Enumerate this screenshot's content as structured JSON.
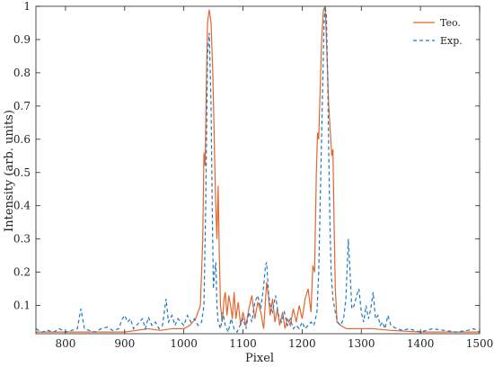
{
  "chart_data": {
    "type": "line",
    "title": "",
    "xlabel": "Pixel",
    "ylabel": "Intensity (arb. units)",
    "xlim": [
      750,
      1500
    ],
    "ylim": [
      0.015,
      1.0
    ],
    "xticks": [
      800,
      900,
      1000,
      1100,
      1200,
      1300,
      1400,
      1500
    ],
    "yticks": [
      0.1,
      0.2,
      0.3,
      0.4,
      0.5,
      0.6,
      0.7,
      0.8,
      0.9,
      1
    ],
    "ytick_labels": [
      "0.1",
      "0.2",
      "0.3",
      "0.4",
      "0.5",
      "0.6",
      "0.7",
      "0.8",
      "0.9",
      "1"
    ],
    "legend_position": "top-right",
    "grid": false,
    "series": [
      {
        "name": "Teo.",
        "style": "solid",
        "color": "#E3662E",
        "points": [
          [
            750,
            0.02
          ],
          [
            800,
            0.02
          ],
          [
            850,
            0.02
          ],
          [
            900,
            0.02
          ],
          [
            940,
            0.03
          ],
          [
            960,
            0.025
          ],
          [
            980,
            0.03
          ],
          [
            1000,
            0.03
          ],
          [
            1010,
            0.04
          ],
          [
            1020,
            0.06
          ],
          [
            1028,
            0.1
          ],
          [
            1032,
            0.3
          ],
          [
            1034,
            0.56
          ],
          [
            1036,
            0.52
          ],
          [
            1038,
            0.75
          ],
          [
            1040,
            0.95
          ],
          [
            1043,
            0.99
          ],
          [
            1046,
            0.95
          ],
          [
            1049,
            0.8
          ],
          [
            1052,
            0.55
          ],
          [
            1054,
            0.4
          ],
          [
            1056,
            0.3
          ],
          [
            1058,
            0.46
          ],
          [
            1060,
            0.25
          ],
          [
            1062,
            0.1
          ],
          [
            1065,
            0.05
          ],
          [
            1068,
            0.12
          ],
          [
            1070,
            0.14
          ],
          [
            1073,
            0.07
          ],
          [
            1076,
            0.13
          ],
          [
            1079,
            0.1
          ],
          [
            1082,
            0.06
          ],
          [
            1085,
            0.14
          ],
          [
            1088,
            0.06
          ],
          [
            1092,
            0.11
          ],
          [
            1096,
            0.04
          ],
          [
            1100,
            0.08
          ],
          [
            1105,
            0.04
          ],
          [
            1110,
            0.09
          ],
          [
            1115,
            0.13
          ],
          [
            1120,
            0.06
          ],
          [
            1125,
            0.11
          ],
          [
            1130,
            0.08
          ],
          [
            1135,
            0.03
          ],
          [
            1140,
            0.17
          ],
          [
            1143,
            0.13
          ],
          [
            1146,
            0.07
          ],
          [
            1150,
            0.12
          ],
          [
            1154,
            0.05
          ],
          [
            1158,
            0.09
          ],
          [
            1162,
            0.04
          ],
          [
            1167,
            0.08
          ],
          [
            1171,
            0.03
          ],
          [
            1175,
            0.06
          ],
          [
            1180,
            0.04
          ],
          [
            1185,
            0.09
          ],
          [
            1190,
            0.05
          ],
          [
            1195,
            0.1
          ],
          [
            1200,
            0.06
          ],
          [
            1205,
            0.12
          ],
          [
            1210,
            0.15
          ],
          [
            1215,
            0.08
          ],
          [
            1218,
            0.22
          ],
          [
            1221,
            0.2
          ],
          [
            1224,
            0.5
          ],
          [
            1226,
            0.62
          ],
          [
            1228,
            0.6
          ],
          [
            1230,
            0.72
          ],
          [
            1233,
            0.9
          ],
          [
            1236,
            0.99
          ],
          [
            1239,
            1.0
          ],
          [
            1242,
            0.85
          ],
          [
            1245,
            0.7
          ],
          [
            1248,
            0.61
          ],
          [
            1250,
            0.55
          ],
          [
            1252,
            0.57
          ],
          [
            1254,
            0.35
          ],
          [
            1256,
            0.15
          ],
          [
            1259,
            0.05
          ],
          [
            1265,
            0.04
          ],
          [
            1275,
            0.03
          ],
          [
            1290,
            0.03
          ],
          [
            1320,
            0.03
          ],
          [
            1350,
            0.025
          ],
          [
            1400,
            0.02
          ],
          [
            1450,
            0.02
          ],
          [
            1500,
            0.02
          ]
        ]
      },
      {
        "name": "Exp.",
        "style": "dashed",
        "color": "#1F78C1",
        "points": [
          [
            750,
            0.03
          ],
          [
            760,
            0.02
          ],
          [
            770,
            0.025
          ],
          [
            780,
            0.02
          ],
          [
            790,
            0.03
          ],
          [
            800,
            0.02
          ],
          [
            810,
            0.025
          ],
          [
            820,
            0.03
          ],
          [
            826,
            0.09
          ],
          [
            832,
            0.03
          ],
          [
            840,
            0.025
          ],
          [
            850,
            0.02
          ],
          [
            860,
            0.03
          ],
          [
            870,
            0.035
          ],
          [
            880,
            0.025
          ],
          [
            890,
            0.03
          ],
          [
            896,
            0.06
          ],
          [
            900,
            0.07
          ],
          [
            905,
            0.05
          ],
          [
            910,
            0.06
          ],
          [
            915,
            0.03
          ],
          [
            920,
            0.04
          ],
          [
            925,
            0.05
          ],
          [
            930,
            0.06
          ],
          [
            935,
            0.03
          ],
          [
            940,
            0.065
          ],
          [
            946,
            0.04
          ],
          [
            952,
            0.05
          ],
          [
            958,
            0.03
          ],
          [
            964,
            0.04
          ],
          [
            970,
            0.12
          ],
          [
            974,
            0.05
          ],
          [
            980,
            0.07
          ],
          [
            985,
            0.04
          ],
          [
            990,
            0.06
          ],
          [
            995,
            0.05
          ],
          [
            1000,
            0.04
          ],
          [
            1006,
            0.07
          ],
          [
            1012,
            0.05
          ],
          [
            1018,
            0.06
          ],
          [
            1024,
            0.04
          ],
          [
            1030,
            0.05
          ],
          [
            1034,
            0.1
          ],
          [
            1037,
            0.4
          ],
          [
            1040,
            0.85
          ],
          [
            1043,
            0.92
          ],
          [
            1046,
            0.7
          ],
          [
            1048,
            0.4
          ],
          [
            1050,
            0.15
          ],
          [
            1052,
            0.2
          ],
          [
            1054,
            0.23
          ],
          [
            1056,
            0.1
          ],
          [
            1058,
            0.05
          ],
          [
            1062,
            0.03
          ],
          [
            1066,
            0.08
          ],
          [
            1070,
            0.04
          ],
          [
            1075,
            0.02
          ],
          [
            1080,
            0.06
          ],
          [
            1085,
            0.03
          ],
          [
            1090,
            0.02
          ],
          [
            1095,
            0.04
          ],
          [
            1100,
            0.06
          ],
          [
            1105,
            0.03
          ],
          [
            1110,
            0.08
          ],
          [
            1115,
            0.05
          ],
          [
            1120,
            0.11
          ],
          [
            1125,
            0.13
          ],
          [
            1130,
            0.09
          ],
          [
            1135,
            0.16
          ],
          [
            1138,
            0.22
          ],
          [
            1140,
            0.23
          ],
          [
            1143,
            0.14
          ],
          [
            1146,
            0.1
          ],
          [
            1150,
            0.08
          ],
          [
            1155,
            0.13
          ],
          [
            1160,
            0.07
          ],
          [
            1165,
            0.05
          ],
          [
            1170,
            0.08
          ],
          [
            1175,
            0.04
          ],
          [
            1180,
            0.06
          ],
          [
            1185,
            0.03
          ],
          [
            1190,
            0.04
          ],
          [
            1195,
            0.03
          ],
          [
            1200,
            0.05
          ],
          [
            1205,
            0.03
          ],
          [
            1210,
            0.04
          ],
          [
            1215,
            0.05
          ],
          [
            1220,
            0.04
          ],
          [
            1225,
            0.08
          ],
          [
            1228,
            0.2
          ],
          [
            1231,
            0.45
          ],
          [
            1234,
            0.7
          ],
          [
            1237,
            0.95
          ],
          [
            1239,
            1.0
          ],
          [
            1241,
            0.97
          ],
          [
            1243,
            0.8
          ],
          [
            1245,
            0.55
          ],
          [
            1247,
            0.35
          ],
          [
            1249,
            0.2
          ],
          [
            1252,
            0.12
          ],
          [
            1256,
            0.08
          ],
          [
            1260,
            0.05
          ],
          [
            1265,
            0.04
          ],
          [
            1270,
            0.06
          ],
          [
            1274,
            0.12
          ],
          [
            1278,
            0.3
          ],
          [
            1281,
            0.2
          ],
          [
            1284,
            0.09
          ],
          [
            1288,
            0.1
          ],
          [
            1292,
            0.13
          ],
          [
            1296,
            0.15
          ],
          [
            1300,
            0.08
          ],
          [
            1304,
            0.05
          ],
          [
            1308,
            0.1
          ],
          [
            1312,
            0.06
          ],
          [
            1316,
            0.09
          ],
          [
            1320,
            0.14
          ],
          [
            1324,
            0.06
          ],
          [
            1328,
            0.07
          ],
          [
            1332,
            0.04
          ],
          [
            1336,
            0.05
          ],
          [
            1340,
            0.03
          ],
          [
            1345,
            0.07
          ],
          [
            1350,
            0.04
          ],
          [
            1360,
            0.03
          ],
          [
            1370,
            0.025
          ],
          [
            1380,
            0.03
          ],
          [
            1390,
            0.025
          ],
          [
            1400,
            0.02
          ],
          [
            1420,
            0.03
          ],
          [
            1440,
            0.025
          ],
          [
            1460,
            0.02
          ],
          [
            1480,
            0.025
          ],
          [
            1490,
            0.03
          ],
          [
            1500,
            0.02
          ]
        ]
      }
    ]
  }
}
